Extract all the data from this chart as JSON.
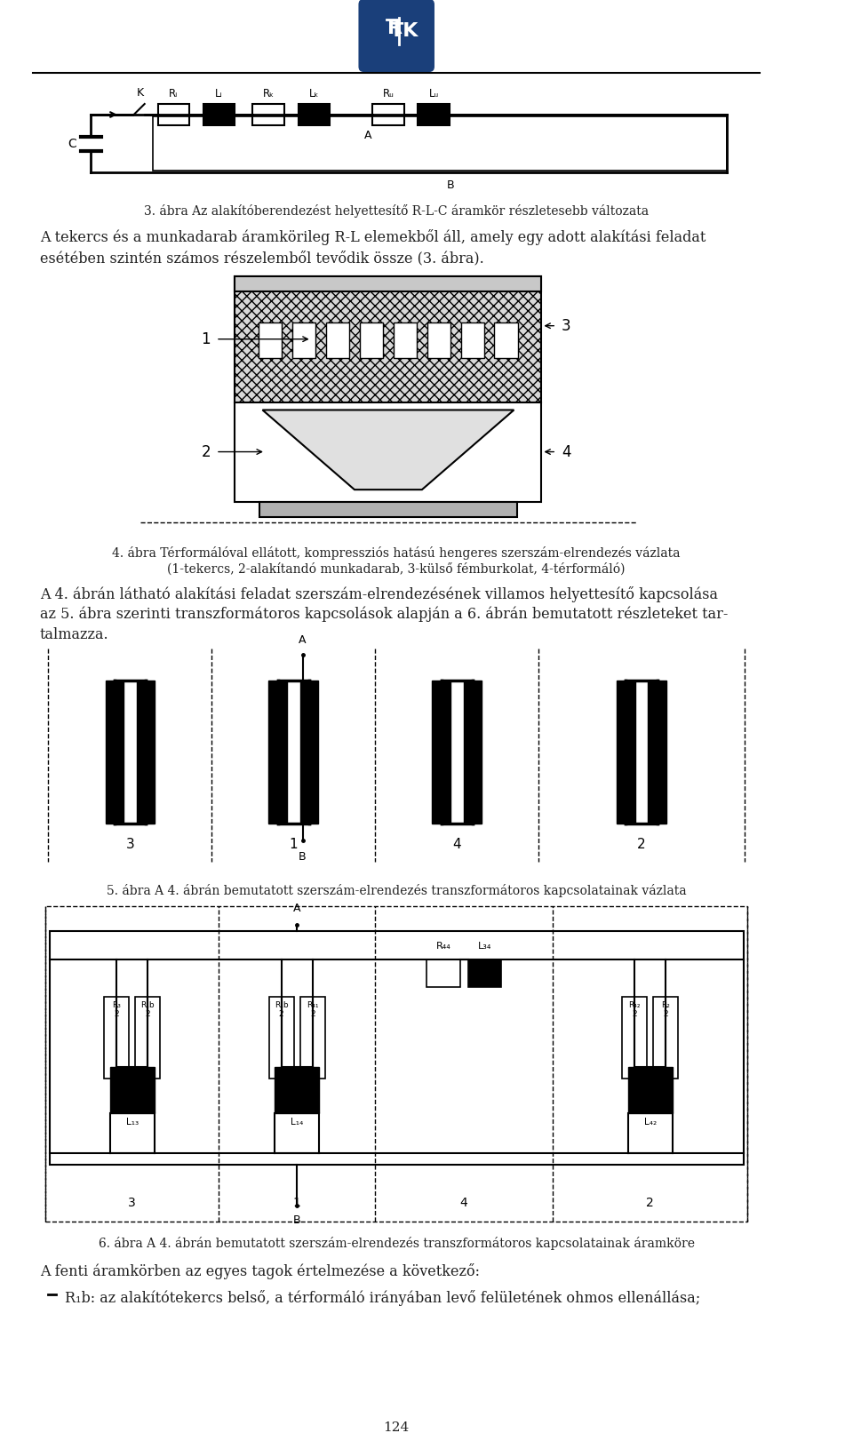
{
  "page_width": 9.6,
  "page_height": 16.22,
  "bg_color": "#ffffff",
  "logo_color": "#1a3f7a",
  "text_color": "#222222",
  "fig3_caption": "3. ábra Az alakítóberendezést helyettesítő R-L-C áramkör részletesebb változata",
  "para1_line1": "A tekercs és a munkadarab áramkörileg R-L elemekből áll, amely egy adott alakítási feladat",
  "para1_line2": "esétében szintén számos részelemből tevődik össze (3. ábra).",
  "fig4_caption_line1": "4. ábra Térformálóval ellátott, kompressziós hatású hengeres szerszám-elrendezés vázlata",
  "fig4_caption_line2": "(1-tekercs, 2-alakítandó munkadarab, 3-külső fémburkolat, 4-térformáló)",
  "para2_line1": "A 4. ábrán látható alakítási feladat szerszám-elrendezésének villamos helyettesítő kapcsolása",
  "para2_line2": "az 5. ábra szerinti transzformátoros kapcsolások alapján a 6. ábrán bemutatott részleteket tar-",
  "para2_line3": "talmazza.",
  "fig5_caption": "5. ábra A 4. ábrán bemutatott szerszám-elrendezés transzformátoros kapcsolatainak vázlata",
  "fig6_caption": "6. ábra A 4. ábrán bemutatott szerszám-elrendezés transzformátoros kapcsolatainak áramköre",
  "para3_line1": "A fenti áramkörben az egyes tagok értelmezése a következő:",
  "bullet1": "R₁b: az alakítótekercs belső, a térformáló irányában levő felületének ohmos ellenállása;",
  "page_number": "124"
}
